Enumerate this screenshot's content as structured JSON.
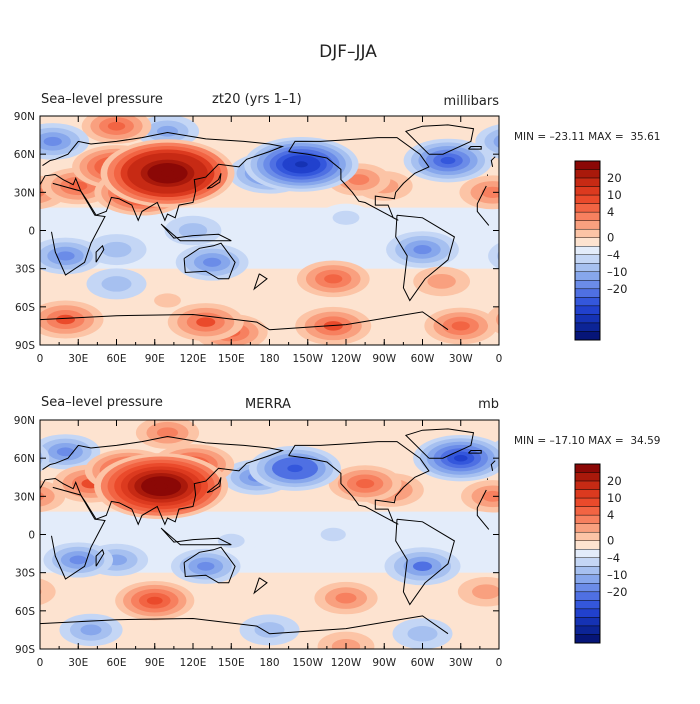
{
  "page_title": "DJF–JJA",
  "colors": {
    "positive": [
      "#fde3d0",
      "#fcc4a6",
      "#f9a07f",
      "#f7805f",
      "#f26443",
      "#ea4a2b",
      "#dc3a1f",
      "#c72a14",
      "#a9190b",
      "#8b0806"
    ],
    "negative": [
      "#e3ecfa",
      "#c4d6f5",
      "#a6c0f0",
      "#87a7ec",
      "#6b8ce8",
      "#4f70e3",
      "#3457dc",
      "#2141cd",
      "#1532b4",
      "#0c2496",
      "#061578"
    ],
    "land": "#000000"
  },
  "chart_data": [
    {
      "type": "heatmap",
      "title_left": "Sea–level pressure",
      "title_center": "zt20 (yrs 1–1)",
      "units": "millibars",
      "stats": "MIN = –23.11 MAX =  35.61",
      "min": -23.11,
      "max": 35.61,
      "x_ticks": [
        "0",
        "30E",
        "60E",
        "90E",
        "120E",
        "150E",
        "180",
        "150W",
        "120W",
        "90W",
        "60W",
        "30W",
        "0"
      ],
      "y_ticks": [
        "90N",
        "60N",
        "30N",
        "0",
        "30S",
        "60S",
        "90S"
      ],
      "x_range": [
        0,
        360
      ],
      "y_range": [
        -90,
        90
      ],
      "colorbar_labels": [
        "20",
        "10",
        "4",
        "0",
        "–4",
        "–10",
        "–20"
      ],
      "anomalies": [
        {
          "lon": 100,
          "lat": 45,
          "value": 33
        },
        {
          "lon": 80,
          "lat": 30,
          "value": 16
        },
        {
          "lon": 60,
          "lat": 50,
          "value": 14
        },
        {
          "lon": 30,
          "lat": 35,
          "value": 9
        },
        {
          "lon": 355,
          "lat": 30,
          "value": 7
        },
        {
          "lon": 250,
          "lat": 40,
          "value": 6
        },
        {
          "lon": 270,
          "lat": 35,
          "value": 4
        },
        {
          "lon": 205,
          "lat": 52,
          "value": -22
        },
        {
          "lon": 180,
          "lat": 45,
          "value": -12
        },
        {
          "lon": 320,
          "lat": 55,
          "value": -14
        },
        {
          "lon": 10,
          "lat": 70,
          "value": -9
        },
        {
          "lon": 100,
          "lat": 78,
          "value": -6
        },
        {
          "lon": 20,
          "lat": -20,
          "value": -9
        },
        {
          "lon": 135,
          "lat": -25,
          "value": -9
        },
        {
          "lon": 300,
          "lat": -15,
          "value": -9
        },
        {
          "lon": 60,
          "lat": -15,
          "value": -5
        },
        {
          "lon": 120,
          "lat": 0,
          "value": -4
        },
        {
          "lon": 240,
          "lat": 10,
          "value": -3
        },
        {
          "lon": 60,
          "lat": -42,
          "value": -5
        },
        {
          "lon": 230,
          "lat": -38,
          "value": 9
        },
        {
          "lon": 315,
          "lat": -40,
          "value": 4
        },
        {
          "lon": 100,
          "lat": -55,
          "value": 3
        },
        {
          "lon": 20,
          "lat": -70,
          "value": 10
        },
        {
          "lon": 130,
          "lat": -72,
          "value": 10
        },
        {
          "lon": 230,
          "lat": -75,
          "value": 10
        },
        {
          "lon": 330,
          "lat": -75,
          "value": 9
        },
        {
          "lon": 150,
          "lat": -80,
          "value": 9
        },
        {
          "lon": 60,
          "lat": 82,
          "value": 8
        }
      ]
    },
    {
      "type": "heatmap",
      "title_left": "Sea–level pressure",
      "title_center": "MERRA",
      "units": "mb",
      "stats": "MIN = –17.10 MAX =  34.59",
      "min": -17.1,
      "max": 34.59,
      "x_ticks": [
        "0",
        "30E",
        "60E",
        "90E",
        "120E",
        "150E",
        "180",
        "150W",
        "120W",
        "90W",
        "60W",
        "30W",
        "0"
      ],
      "y_ticks": [
        "90N",
        "60N",
        "30N",
        "0",
        "30S",
        "60S",
        "90S"
      ],
      "x_range": [
        0,
        360
      ],
      "y_range": [
        -90,
        90
      ],
      "colorbar_labels": [
        "20",
        "10",
        "4",
        "0",
        "–4",
        "–10",
        "–20"
      ],
      "anomalies": [
        {
          "lon": 95,
          "lat": 38,
          "value": 30
        },
        {
          "lon": 70,
          "lat": 50,
          "value": 14
        },
        {
          "lon": 120,
          "lat": 55,
          "value": 12
        },
        {
          "lon": 40,
          "lat": 40,
          "value": 10
        },
        {
          "lon": 355,
          "lat": 30,
          "value": 6
        },
        {
          "lon": 255,
          "lat": 40,
          "value": 9
        },
        {
          "lon": 275,
          "lat": 35,
          "value": 7
        },
        {
          "lon": 100,
          "lat": 80,
          "value": 6
        },
        {
          "lon": 200,
          "lat": 52,
          "value": -15
        },
        {
          "lon": 170,
          "lat": 45,
          "value": -8
        },
        {
          "lon": 330,
          "lat": 60,
          "value": -16
        },
        {
          "lon": 20,
          "lat": 65,
          "value": -8
        },
        {
          "lon": 30,
          "lat": -20,
          "value": -8
        },
        {
          "lon": 130,
          "lat": -25,
          "value": -8
        },
        {
          "lon": 300,
          "lat": -25,
          "value": -10
        },
        {
          "lon": 60,
          "lat": -20,
          "value": -6
        },
        {
          "lon": 150,
          "lat": -5,
          "value": -3
        },
        {
          "lon": 230,
          "lat": 0,
          "value": -2
        },
        {
          "lon": 90,
          "lat": -52,
          "value": 11
        },
        {
          "lon": 240,
          "lat": -50,
          "value": 6
        },
        {
          "lon": 350,
          "lat": -45,
          "value": 4
        },
        {
          "lon": 40,
          "lat": -75,
          "value": -6
        },
        {
          "lon": 180,
          "lat": -75,
          "value": -5
        },
        {
          "lon": 300,
          "lat": -78,
          "value": -5
        },
        {
          "lon": 240,
          "lat": -88,
          "value": 4
        }
      ]
    }
  ]
}
